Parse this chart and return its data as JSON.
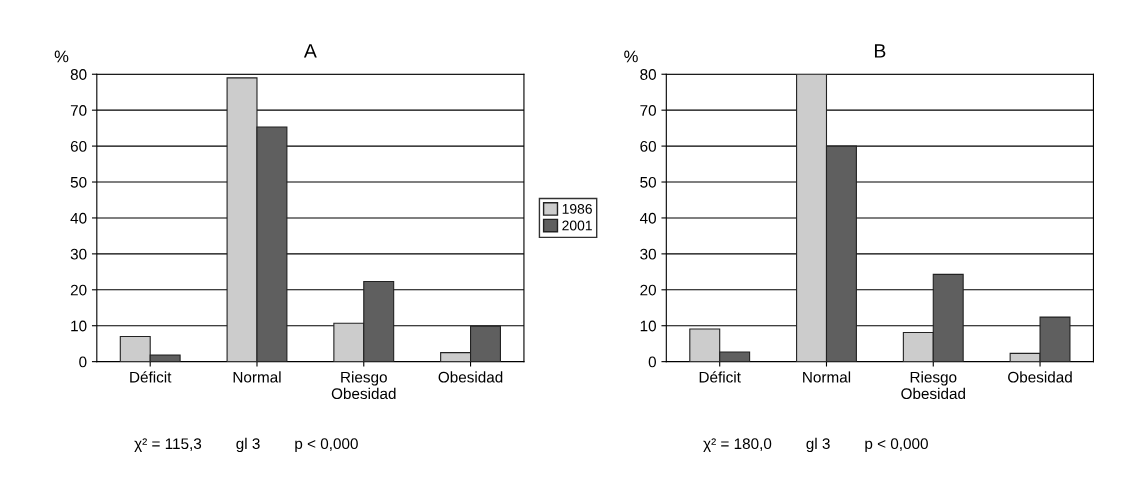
{
  "chart_data": [
    {
      "type": "bar",
      "title": "A",
      "ylabel": "%",
      "categories": [
        "Déficit",
        "Normal",
        "Riesgo\nObesidad",
        "Obesidad"
      ],
      "series": [
        {
          "name": "1986",
          "color": "#cccccc",
          "values": [
            7,
            79,
            10.7,
            2.5
          ]
        },
        {
          "name": "2001",
          "color": "#5f5f5f",
          "values": [
            1.8,
            65.3,
            22.3,
            9.9
          ]
        }
      ],
      "ylim": [
        0,
        80
      ],
      "yticks": [
        0,
        10,
        20,
        30,
        40,
        50,
        60,
        70,
        80
      ],
      "grid": "y",
      "legend": "right",
      "annotations": [
        "χ² = 115,3        gl 3        p < 0,000"
      ]
    },
    {
      "type": "bar",
      "title": "B",
      "ylabel": "%",
      "categories": [
        "Déficit",
        "Normal",
        "Riesgo\nObesidad",
        "Obesidad"
      ],
      "series": [
        {
          "color": "#cccccc",
          "values": [
            9.1,
            80,
            8.1,
            2.3
          ]
        },
        {
          "color": "#5f5f5f",
          "values": [
            2.7,
            60,
            24.3,
            12.4
          ]
        }
      ],
      "ylim": [
        0,
        80
      ],
      "yticks": [
        0,
        10,
        20,
        30,
        40,
        50,
        60,
        70,
        80
      ],
      "grid": "y",
      "annotations": [
        "χ² = 180,0        gl 3        p < 0,000"
      ]
    }
  ]
}
